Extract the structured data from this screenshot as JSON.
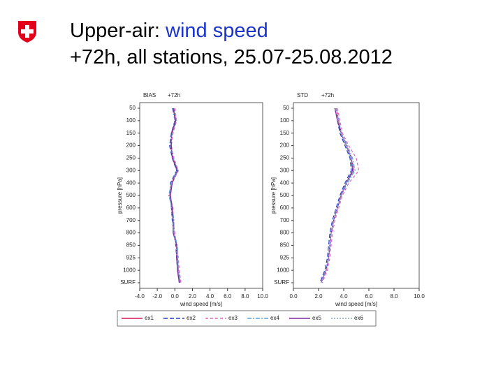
{
  "slide": {
    "title_lead": "Upper-air:",
    "title_topic": "wind speed",
    "subtitle": "+72h, all stations, 25.07-25.08.2012"
  },
  "chart_data": [
    {
      "type": "profile",
      "title": "BIAS",
      "subtitle": "+72h",
      "x_label": "wind speed [m/s]",
      "y_label": "pressure [hPa]",
      "categories": [
        "50",
        "100",
        "150",
        "200",
        "250",
        "300",
        "400",
        "500",
        "600",
        "700",
        "800",
        "850",
        "925",
        "1000",
        "SURF"
      ],
      "xlim": [
        -4,
        10
      ],
      "xticks": [
        {
          "value": -4,
          "label": "-4.0"
        },
        {
          "value": -2,
          "label": "-2.0"
        },
        {
          "value": 0,
          "label": "0.0"
        },
        {
          "value": 2,
          "label": "2.0"
        },
        {
          "value": 4,
          "label": "4.0"
        },
        {
          "value": 6,
          "label": "6.0"
        },
        {
          "value": 8,
          "label": "8.0"
        },
        {
          "value": 10,
          "label": "10.0"
        }
      ],
      "series": [
        {
          "name": "ex1",
          "color": "#d4145a",
          "dash": "none",
          "values": [
            -0.2,
            0.1,
            -0.3,
            -0.5,
            -0.2,
            0.3,
            -0.4,
            -0.6,
            -0.3,
            -0.2,
            -0.1,
            0.2,
            0.3,
            0.4,
            0.6
          ]
        },
        {
          "name": "ex2",
          "color": "#1f3fbf",
          "dash": "6 3",
          "values": [
            -0.1,
            0.0,
            -0.4,
            -0.6,
            -0.3,
            0.2,
            -0.5,
            -0.5,
            -0.4,
            -0.3,
            -0.1,
            0.1,
            0.2,
            0.3,
            0.5
          ]
        },
        {
          "name": "ex3",
          "color": "#e066c8",
          "dash": "4 3",
          "values": [
            0.0,
            0.2,
            -0.2,
            -0.4,
            -0.1,
            0.4,
            -0.3,
            -0.6,
            -0.2,
            -0.2,
            0.0,
            0.2,
            0.4,
            0.5,
            0.7
          ]
        },
        {
          "name": "ex4",
          "color": "#5aa0d8",
          "dash": "6 2 2 2",
          "values": [
            -0.3,
            0.0,
            -0.3,
            -0.5,
            -0.2,
            0.2,
            -0.4,
            -0.7,
            -0.3,
            -0.1,
            -0.1,
            0.3,
            0.3,
            0.4,
            0.6
          ]
        },
        {
          "name": "ex5",
          "color": "#7a2a9a",
          "dash": "none",
          "values": [
            -0.2,
            0.1,
            -0.4,
            -0.4,
            -0.3,
            0.3,
            -0.3,
            -0.5,
            -0.3,
            -0.2,
            -0.2,
            0.2,
            0.2,
            0.3,
            0.5
          ]
        },
        {
          "name": "ex6",
          "color": "#8aa0c8",
          "dash": "2 2",
          "values": [
            -0.1,
            0.2,
            -0.3,
            -0.5,
            -0.2,
            0.4,
            -0.4,
            -0.6,
            -0.4,
            -0.3,
            -0.1,
            0.1,
            0.3,
            0.4,
            0.6
          ]
        }
      ]
    },
    {
      "type": "profile",
      "title": "STD",
      "subtitle": "+72h",
      "x_label": "wind speed [m/s]",
      "y_label": "pressure [hPa]",
      "categories": [
        "50",
        "100",
        "150",
        "200",
        "250",
        "300",
        "400",
        "500",
        "600",
        "700",
        "800",
        "850",
        "925",
        "1000",
        "SURF"
      ],
      "xlim": [
        0,
        10
      ],
      "xticks": [
        {
          "value": 0,
          "label": "0.0"
        },
        {
          "value": 2,
          "label": "2.0"
        },
        {
          "value": 4,
          "label": "4.0"
        },
        {
          "value": 6,
          "label": "6.0"
        },
        {
          "value": 8,
          "label": "8.0"
        },
        {
          "value": 10,
          "label": "10.0"
        }
      ],
      "series": [
        {
          "name": "ex1",
          "color": "#d4145a",
          "dash": "none",
          "values": [
            3.4,
            3.6,
            3.8,
            4.2,
            4.6,
            4.8,
            4.2,
            3.8,
            3.5,
            3.2,
            3.0,
            2.9,
            2.8,
            2.6,
            2.2
          ]
        },
        {
          "name": "ex2",
          "color": "#1f3fbf",
          "dash": "6 3",
          "values": [
            3.3,
            3.5,
            3.7,
            4.1,
            4.5,
            4.6,
            4.1,
            3.7,
            3.4,
            3.1,
            2.9,
            2.8,
            2.7,
            2.5,
            2.1
          ]
        },
        {
          "name": "ex3",
          "color": "#e066c8",
          "dash": "4 3",
          "values": [
            3.5,
            3.7,
            3.9,
            4.4,
            5.0,
            5.2,
            4.4,
            3.9,
            3.6,
            3.3,
            3.1,
            3.0,
            2.9,
            2.7,
            2.3
          ]
        },
        {
          "name": "ex4",
          "color": "#5aa0d8",
          "dash": "6 2 2 2",
          "values": [
            3.4,
            3.6,
            3.8,
            4.3,
            4.7,
            4.9,
            4.3,
            3.8,
            3.5,
            3.2,
            3.0,
            2.9,
            2.8,
            2.6,
            2.2
          ]
        },
        {
          "name": "ex5",
          "color": "#7a2a9a",
          "dash": "none",
          "values": [
            3.3,
            3.5,
            3.8,
            4.2,
            4.6,
            4.7,
            4.2,
            3.8,
            3.5,
            3.2,
            3.0,
            2.9,
            2.8,
            2.6,
            2.2
          ]
        },
        {
          "name": "ex6",
          "color": "#8aa0c8",
          "dash": "2 2",
          "values": [
            3.4,
            3.6,
            3.8,
            4.2,
            4.6,
            4.8,
            4.2,
            3.8,
            3.5,
            3.2,
            3.0,
            2.9,
            2.8,
            2.6,
            2.2
          ]
        }
      ]
    }
  ]
}
